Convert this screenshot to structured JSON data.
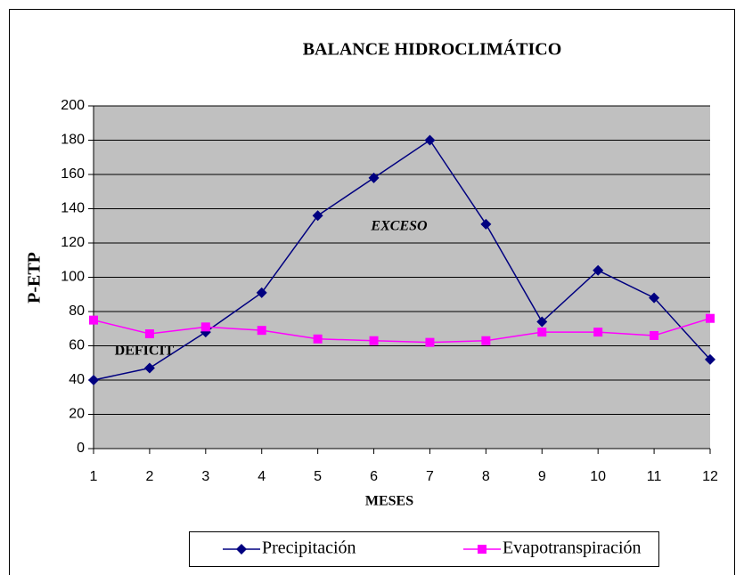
{
  "chart_data": {
    "type": "line",
    "title": "BALANCE HIDROCLIMÁTICO",
    "x_label": "MESES",
    "y_label": "P-ETP",
    "x": [
      1,
      2,
      3,
      4,
      5,
      6,
      7,
      8,
      9,
      10,
      11,
      12
    ],
    "xlim": [
      1,
      12
    ],
    "xticks": [
      1,
      2,
      3,
      4,
      5,
      6,
      7,
      8,
      9,
      10,
      11,
      12
    ],
    "ylim": [
      0,
      200
    ],
    "yticks": [
      0,
      20,
      40,
      60,
      80,
      100,
      120,
      140,
      160,
      180,
      200
    ],
    "grid": true,
    "legend": "bottom",
    "annotations": [
      "EXCESO",
      "DEFICIT"
    ],
    "series": [
      {
        "name": "Precipitación",
        "color": "#000080",
        "marker": "diamond",
        "values": [
          40,
          47,
          68,
          91,
          136,
          158,
          180,
          131,
          74,
          104,
          88,
          52
        ]
      },
      {
        "name": "Evapotranspiración",
        "color": "#ff00ff",
        "marker": "square",
        "values": [
          75,
          67,
          71,
          69,
          64,
          63,
          62,
          63,
          68,
          68,
          66,
          76
        ]
      }
    ]
  }
}
